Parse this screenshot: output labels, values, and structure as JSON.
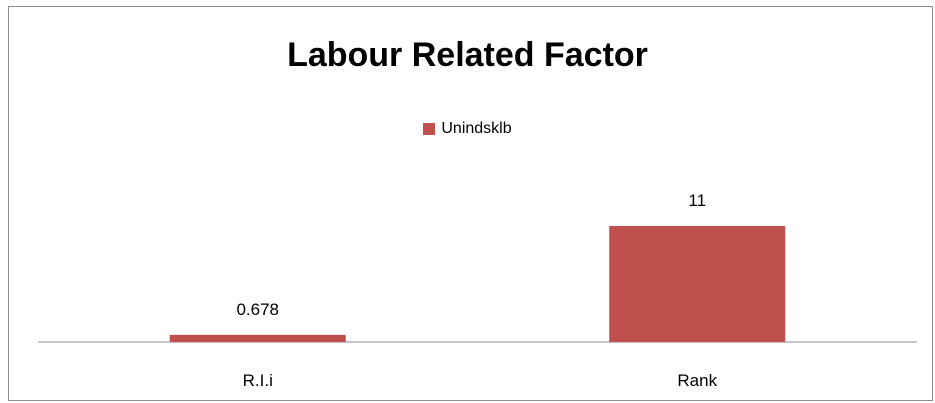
{
  "chart_data": {
    "type": "bar",
    "title": "Labour Related Factor",
    "categories": [
      "R.I.i",
      "Rank"
    ],
    "series": [
      {
        "name": "Unindsklb",
        "values": [
          0.678,
          11
        ],
        "color": "#C0504D"
      }
    ],
    "data_labels": [
      "0.678",
      "11"
    ],
    "legend_position": "top",
    "grid": false
  }
}
